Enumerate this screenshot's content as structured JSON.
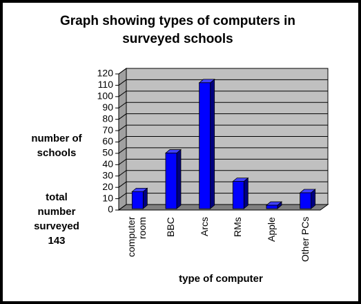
{
  "chart_data": {
    "type": "bar3d",
    "title": "Graph showing types of computers in surveyed schools",
    "y_label": "number of schools",
    "x_label": "type of computer",
    "annotation": "total number surveyed 143",
    "categories": [
      "computer room",
      "BBC",
      "Arcs",
      "RMs",
      "Apple",
      "Other PCs"
    ],
    "values": [
      15,
      49,
      111,
      24,
      3,
      14
    ],
    "color": "#0000ff",
    "ylim": [
      0,
      120
    ],
    "yticks": [
      0,
      10,
      20,
      30,
      40,
      50,
      60,
      70,
      80,
      90,
      100,
      110,
      120
    ],
    "grid": true
  }
}
